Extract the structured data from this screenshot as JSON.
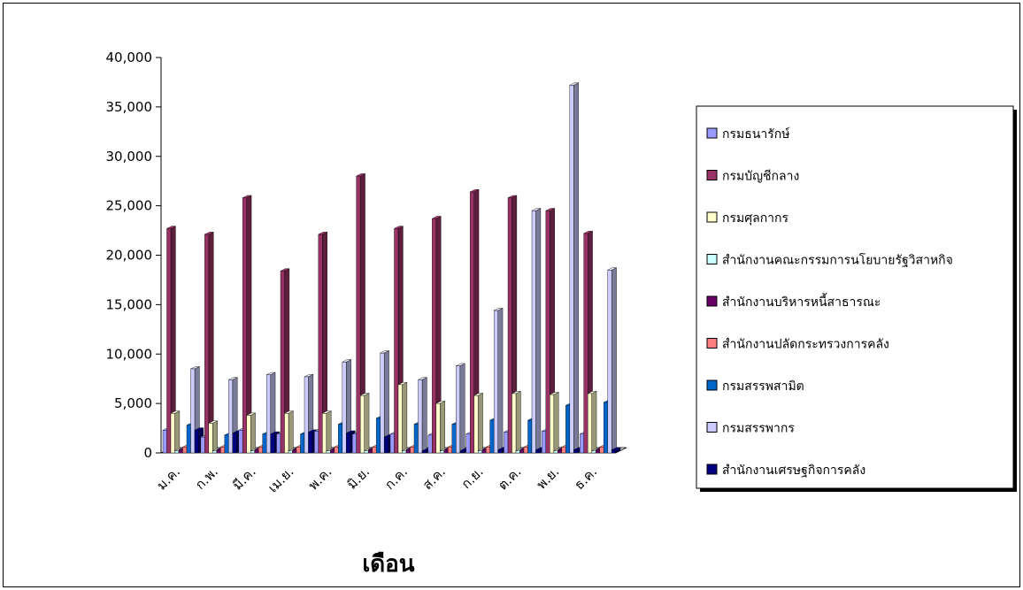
{
  "chart_data": {
    "type": "bar",
    "title": "",
    "xlabel": "เดือน",
    "ylabel": "",
    "ylim": [
      0,
      40000
    ],
    "yticks": [
      "0",
      "5,000",
      "10,000",
      "15,000",
      "20,000",
      "25,000",
      "30,000",
      "35,000",
      "40,000"
    ],
    "categories": [
      "ม.ค.",
      "ก.พ.",
      "มี.ค.",
      "เม.ย.",
      "พ.ค.",
      "มิ.ย.",
      "ก.ค.",
      "ส.ค.",
      "ก.ย.",
      "ต.ค.",
      "พ.ย.",
      "ธ.ค."
    ],
    "series": [
      {
        "name": "กรมธนารักษ์",
        "color": "#9999ff",
        "values": [
          2300,
          1600,
          2300,
          1900,
          2200,
          1900,
          1900,
          1800,
          1900,
          2100,
          2200,
          1900
        ]
      },
      {
        "name": "กรมบัญชีกลาง",
        "color": "#993366",
        "values": [
          22700,
          22100,
          25800,
          18400,
          22100,
          28000,
          22700,
          23700,
          26400,
          25800,
          24500,
          22200
        ]
      },
      {
        "name": "กรมศุลกากร",
        "color": "#ffffcc",
        "values": [
          4000,
          3000,
          3800,
          4000,
          4000,
          5800,
          6900,
          5000,
          5800,
          6000,
          5900,
          6000
        ]
      },
      {
        "name": "สำนักงานคณะกรรมการนโยบายรัฐวิสาหกิจ",
        "color": "#ccffff",
        "values": [
          200,
          200,
          200,
          200,
          200,
          200,
          200,
          200,
          200,
          200,
          200,
          200
        ]
      },
      {
        "name": "สำนักงานบริหารหนี้สาธารณะ",
        "color": "#660066",
        "values": [
          300,
          300,
          300,
          300,
          300,
          300,
          300,
          300,
          300,
          300,
          300,
          300
        ]
      },
      {
        "name": "สำนักงานปลัดกระทรวงการคลัง",
        "color": "#ff8080",
        "values": [
          600,
          600,
          600,
          600,
          600,
          600,
          600,
          600,
          600,
          600,
          600,
          600
        ]
      },
      {
        "name": "กรมสรรพสามิต",
        "color": "#0066cc",
        "values": [
          2800,
          1800,
          1900,
          1900,
          2900,
          3500,
          2900,
          2900,
          3300,
          3300,
          4800,
          5100
        ]
      },
      {
        "name": "กรมสรรพากร",
        "color": "#ccccff",
        "values": [
          8500,
          7400,
          7900,
          7700,
          9200,
          10100,
          7400,
          8800,
          14400,
          24500,
          37200,
          18500
        ]
      },
      {
        "name": "สำนักงานเศรษฐกิจการคลัง",
        "color": "#000080",
        "values": [
          2300,
          2000,
          1900,
          2100,
          2000,
          1600,
          200,
          200,
          300,
          300,
          300,
          300
        ]
      }
    ],
    "legend_position": "right",
    "grid": false
  }
}
